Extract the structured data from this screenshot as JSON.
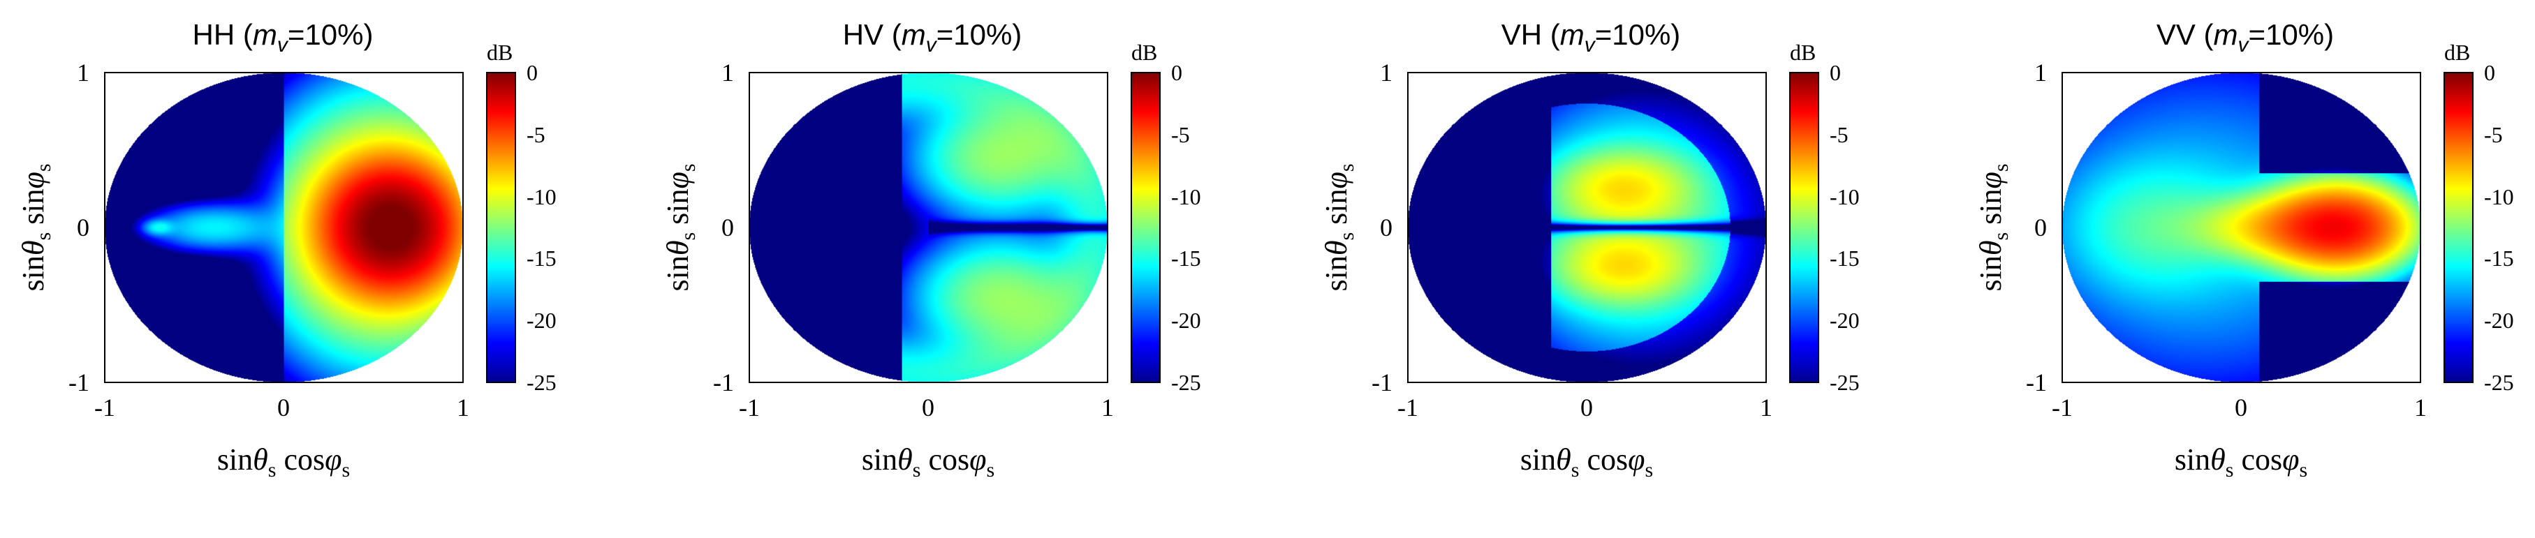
{
  "chart_data": [
    {
      "type": "heatmap",
      "panel": "HH",
      "title": {
        "pol": "HH",
        "param": "m",
        "param_sub": "v",
        "value": "=10%"
      },
      "xlabel": {
        "pre": "sin",
        "theta": "θ",
        "s": "s",
        "mid": " cos",
        "phi": "φ",
        "s2": "s"
      },
      "ylabel": {
        "pre": "sin",
        "theta": "θ",
        "s": "s",
        "mid": " sin",
        "phi": "φ",
        "s2": "s"
      },
      "xlim": [
        -1,
        1
      ],
      "ylim": [
        -1,
        1
      ],
      "xticks": [
        "-1",
        "0",
        "1"
      ],
      "yticks": [
        "-1",
        "0",
        "1"
      ],
      "colorbar": {
        "unit": "dB",
        "range": [
          -25,
          0
        ],
        "ticks": [
          "0",
          "-5",
          "-10",
          "-15",
          "-20",
          "-25"
        ],
        "colormap": "jet"
      },
      "hotspots": [
        {
          "x": 0.6,
          "y": 0.0,
          "value_db": 0
        },
        {
          "x": -0.4,
          "y": 0.0,
          "value_db": -16
        }
      ]
    },
    {
      "type": "heatmap",
      "panel": "HV",
      "title": {
        "pol": "HV",
        "param": "m",
        "param_sub": "v",
        "value": "=10%"
      },
      "xlabel": {
        "pre": "sin",
        "theta": "θ",
        "s": "s",
        "mid": " cos",
        "phi": "φ",
        "s2": "s"
      },
      "ylabel": {
        "pre": "sin",
        "theta": "θ",
        "s": "s",
        "mid": " sin",
        "phi": "φ",
        "s2": "s"
      },
      "xlim": [
        -1,
        1
      ],
      "ylim": [
        -1,
        1
      ],
      "xticks": [
        "-1",
        "0",
        "1"
      ],
      "yticks": [
        "-1",
        "0",
        "1"
      ],
      "colorbar": {
        "unit": "dB",
        "range": [
          -25,
          0
        ],
        "ticks": [
          "0",
          "-5",
          "-10",
          "-15",
          "-20",
          "-25"
        ],
        "colormap": "jet"
      },
      "hotspots": [
        {
          "x": 0.4,
          "y": 0.45,
          "value_db": -12
        },
        {
          "x": 0.4,
          "y": -0.45,
          "value_db": -12
        }
      ]
    },
    {
      "type": "heatmap",
      "panel": "VH",
      "title": {
        "pol": "VH",
        "param": "m",
        "param_sub": "v",
        "value": "=10%"
      },
      "xlabel": {
        "pre": "sin",
        "theta": "θ",
        "s": "s",
        "mid": " cos",
        "phi": "φ",
        "s2": "s"
      },
      "ylabel": {
        "pre": "sin",
        "theta": "θ",
        "s": "s",
        "mid": " sin",
        "phi": "φ",
        "s2": "s"
      },
      "xlim": [
        -1,
        1
      ],
      "ylim": [
        -1,
        1
      ],
      "xticks": [
        "-1",
        "0",
        "1"
      ],
      "yticks": [
        "-1",
        "0",
        "1"
      ],
      "colorbar": {
        "unit": "dB",
        "range": [
          -25,
          0
        ],
        "ticks": [
          "0",
          "-5",
          "-10",
          "-15",
          "-20",
          "-25"
        ],
        "colormap": "jet"
      },
      "hotspots": [
        {
          "x": 0.2,
          "y": 0.25,
          "value_db": -10
        },
        {
          "x": 0.2,
          "y": -0.25,
          "value_db": -10
        }
      ]
    },
    {
      "type": "heatmap",
      "panel": "VV",
      "title": {
        "pol": "VV",
        "param": "m",
        "param_sub": "v",
        "value": "=10%"
      },
      "xlabel": {
        "pre": "sin",
        "theta": "θ",
        "s": "s",
        "mid": " cos",
        "phi": "φ",
        "s2": "s"
      },
      "ylabel": {
        "pre": "sin",
        "theta": "θ",
        "s": "s",
        "mid": " sin",
        "phi": "φ",
        "s2": "s"
      },
      "xlim": [
        -1,
        1
      ],
      "ylim": [
        -1,
        1
      ],
      "xticks": [
        "-1",
        "0",
        "1"
      ],
      "yticks": [
        "-1",
        "0",
        "1"
      ],
      "colorbar": {
        "unit": "dB",
        "range": [
          -25,
          0
        ],
        "ticks": [
          "0",
          "-5",
          "-10",
          "-15",
          "-20",
          "-25"
        ],
        "colormap": "jet"
      },
      "hotspots": [
        {
          "x": 0.55,
          "y": 0.0,
          "value_db": -4
        },
        {
          "x": -0.5,
          "y": 0.0,
          "value_db": -16
        }
      ]
    }
  ]
}
